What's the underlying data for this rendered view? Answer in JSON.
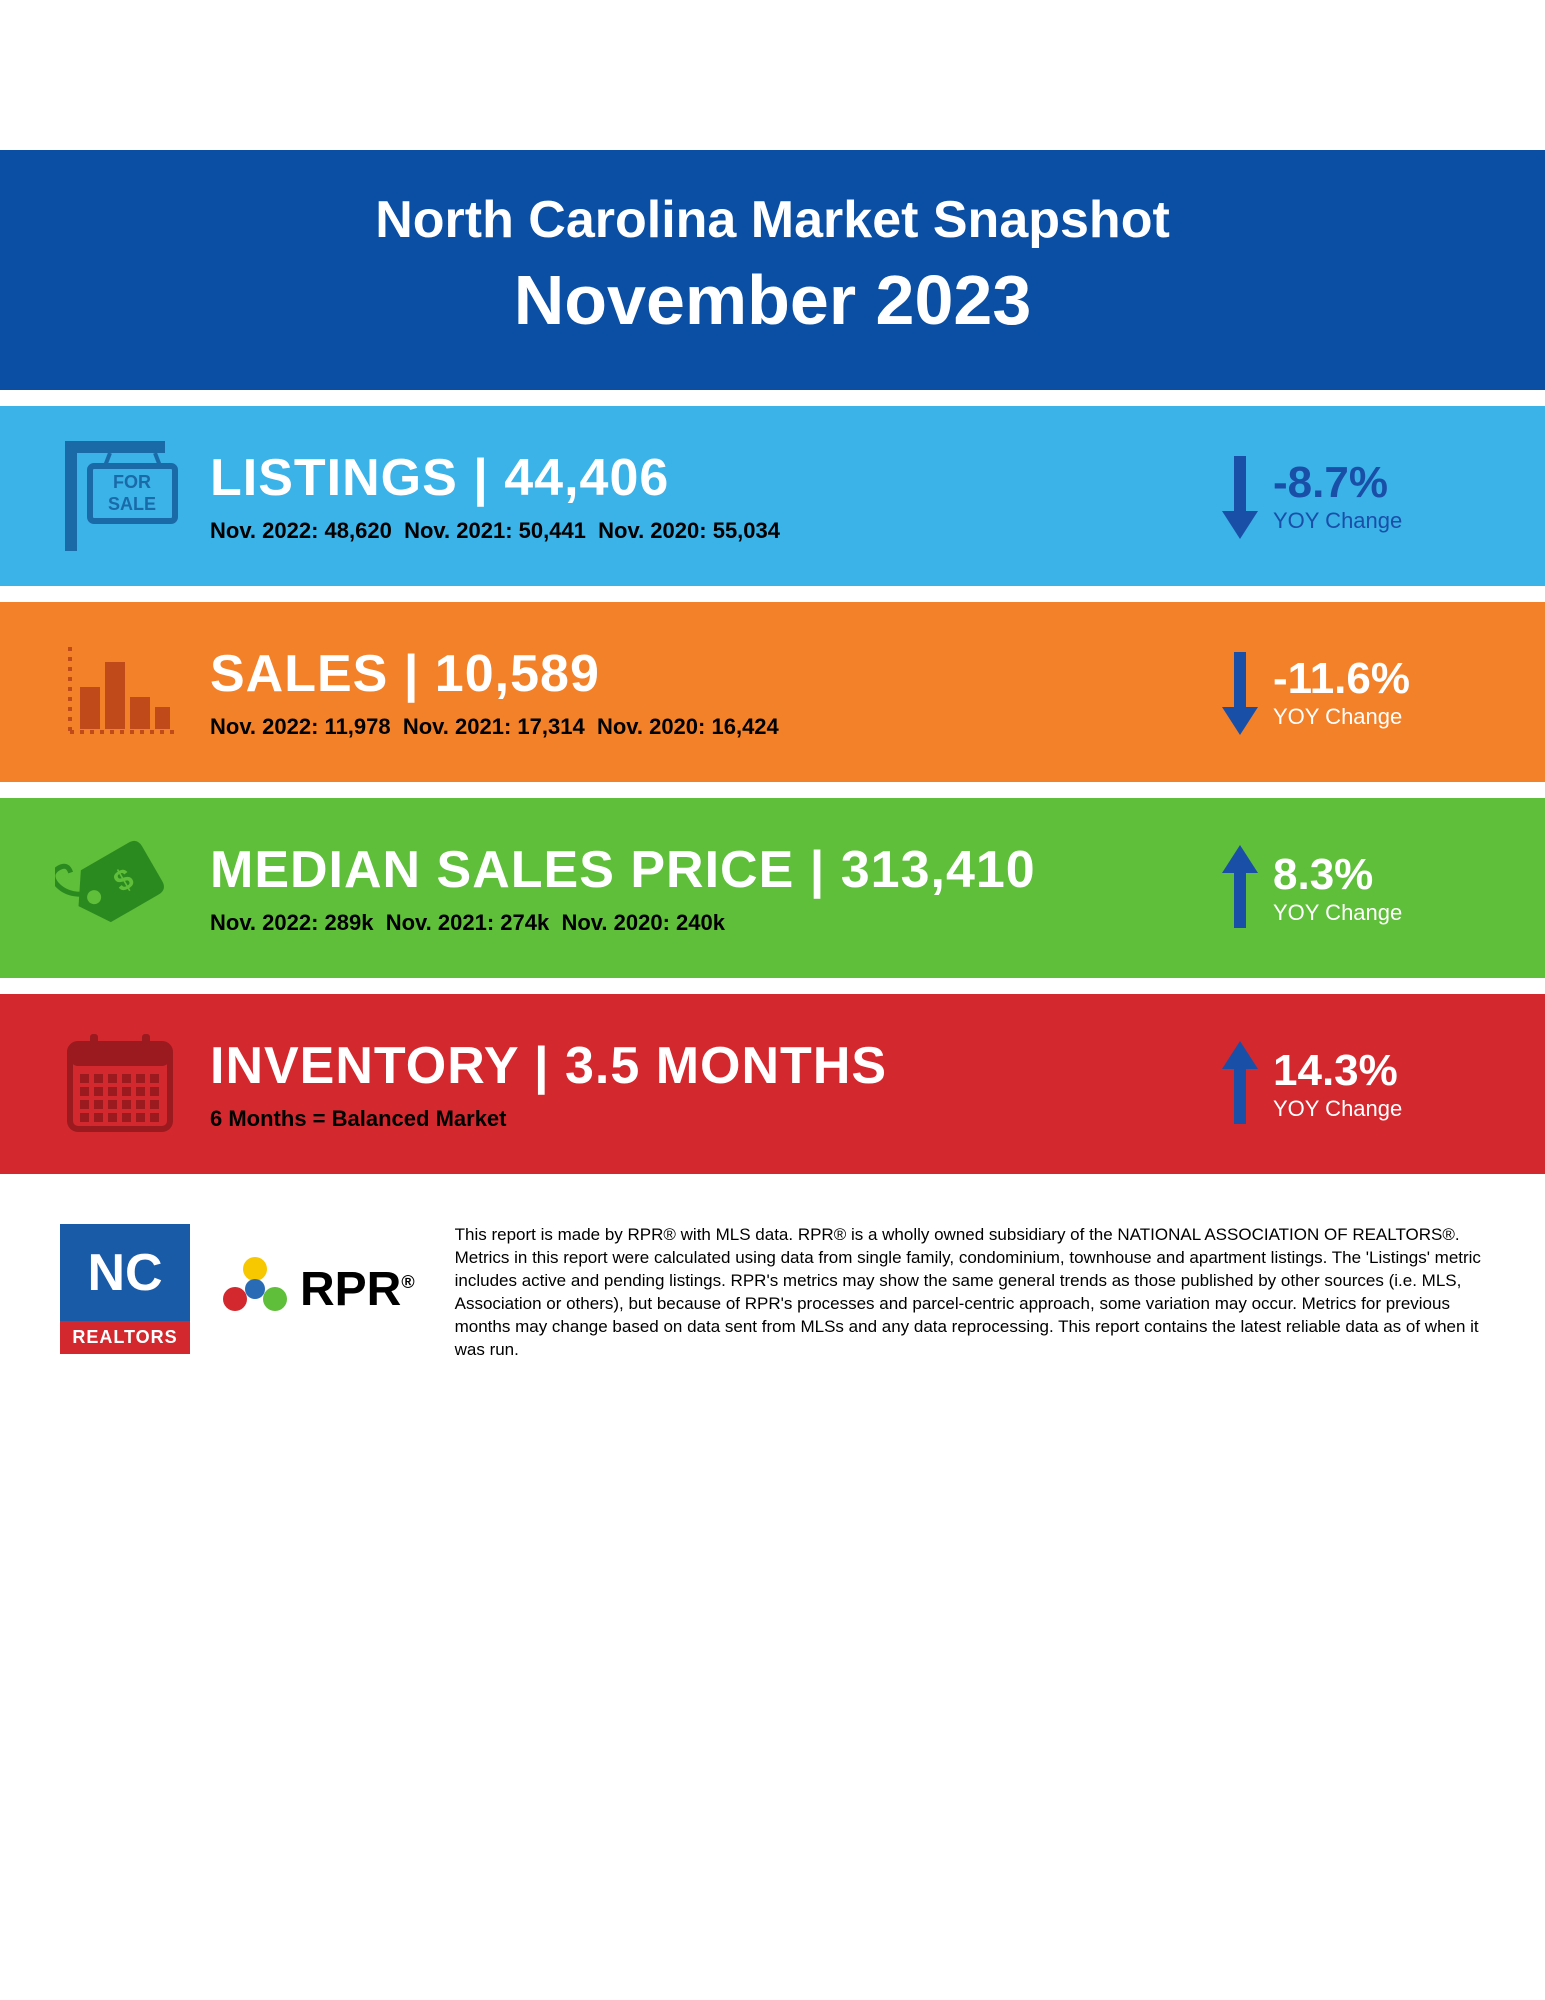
{
  "header": {
    "title": "North Carolina Market Snapshot",
    "subtitle": "November 2023",
    "bg_color": "#0b4fa5",
    "text_color": "#ffffff"
  },
  "metrics": [
    {
      "id": "listings",
      "bg_color": "#3bb2e8",
      "icon": "for-sale-sign",
      "icon_color": "#1a6aa8",
      "title_label": "LISTINGS",
      "title_value": "44,406",
      "history": [
        {
          "period": "Nov. 2022",
          "value": "48,620"
        },
        {
          "period": "Nov. 2021",
          "value": "50,441"
        },
        {
          "period": "Nov. 2020",
          "value": "55,034"
        }
      ],
      "change_direction": "down",
      "change_pct": "-8.7%",
      "change_label": "YOY Change",
      "arrow_color": "#1a4fa8",
      "change_text_color": "#1a4fa8"
    },
    {
      "id": "sales",
      "bg_color": "#f3812a",
      "icon": "bar-chart",
      "icon_color": "#c04a1a",
      "title_label": "SALES",
      "title_value": "10,589",
      "history": [
        {
          "period": "Nov. 2022",
          "value": "11,978"
        },
        {
          "period": "Nov. 2021",
          "value": "17,314"
        },
        {
          "period": "Nov. 2020",
          "value": "16,424"
        }
      ],
      "change_direction": "down",
      "change_pct": "-11.6%",
      "change_label": "YOY Change",
      "arrow_color": "#1a4fa8",
      "change_text_color": "#ffffff"
    },
    {
      "id": "median_price",
      "bg_color": "#5fbf3a",
      "icon": "price-tag",
      "icon_color": "#2b8a1f",
      "title_label": "MEDIAN SALES PRICE",
      "title_value": "313,410",
      "history": [
        {
          "period": "Nov. 2022",
          "value": "289k"
        },
        {
          "period": "Nov. 2021",
          "value": "274k"
        },
        {
          "period": "Nov. 2020",
          "value": "240k"
        }
      ],
      "change_direction": "up",
      "change_pct": "8.3%",
      "change_label": "YOY Change",
      "arrow_color": "#1a4fa8",
      "change_text_color": "#ffffff"
    },
    {
      "id": "inventory",
      "bg_color": "#d4282f",
      "icon": "calendar",
      "icon_color": "#9a1a1f",
      "title_label": "INVENTORY",
      "title_value": "3.5 MONTHS",
      "note_bold": "6 Months",
      "note_rest": " = Balanced Market",
      "change_direction": "up",
      "change_pct": "14.3%",
      "change_label": "YOY Change",
      "arrow_color": "#1a4fa8",
      "change_text_color": "#ffffff"
    }
  ],
  "footer": {
    "nc_logo_top": "NC",
    "nc_logo_bottom": "REALTORS",
    "rpr_logo_text": "RPR",
    "disclaimer": "This report is made by RPR® with MLS data. RPR® is a wholly owned subsidiary of the NATIONAL ASSOCIATION OF REALTORS®. Metrics in this report were calculated using data from single family, condominium, townhouse and apartment listings. The 'Listings' metric includes active and pending listings. RPR's metrics may show the same general trends as those published by other sources (i.e. MLS, Association or others), but because of RPR's processes and parcel-centric approach, some variation may occur. Metrics for previous months may change based on data sent from MLSs and any data reprocessing. This report contains the latest reliable data as of when it was run."
  }
}
